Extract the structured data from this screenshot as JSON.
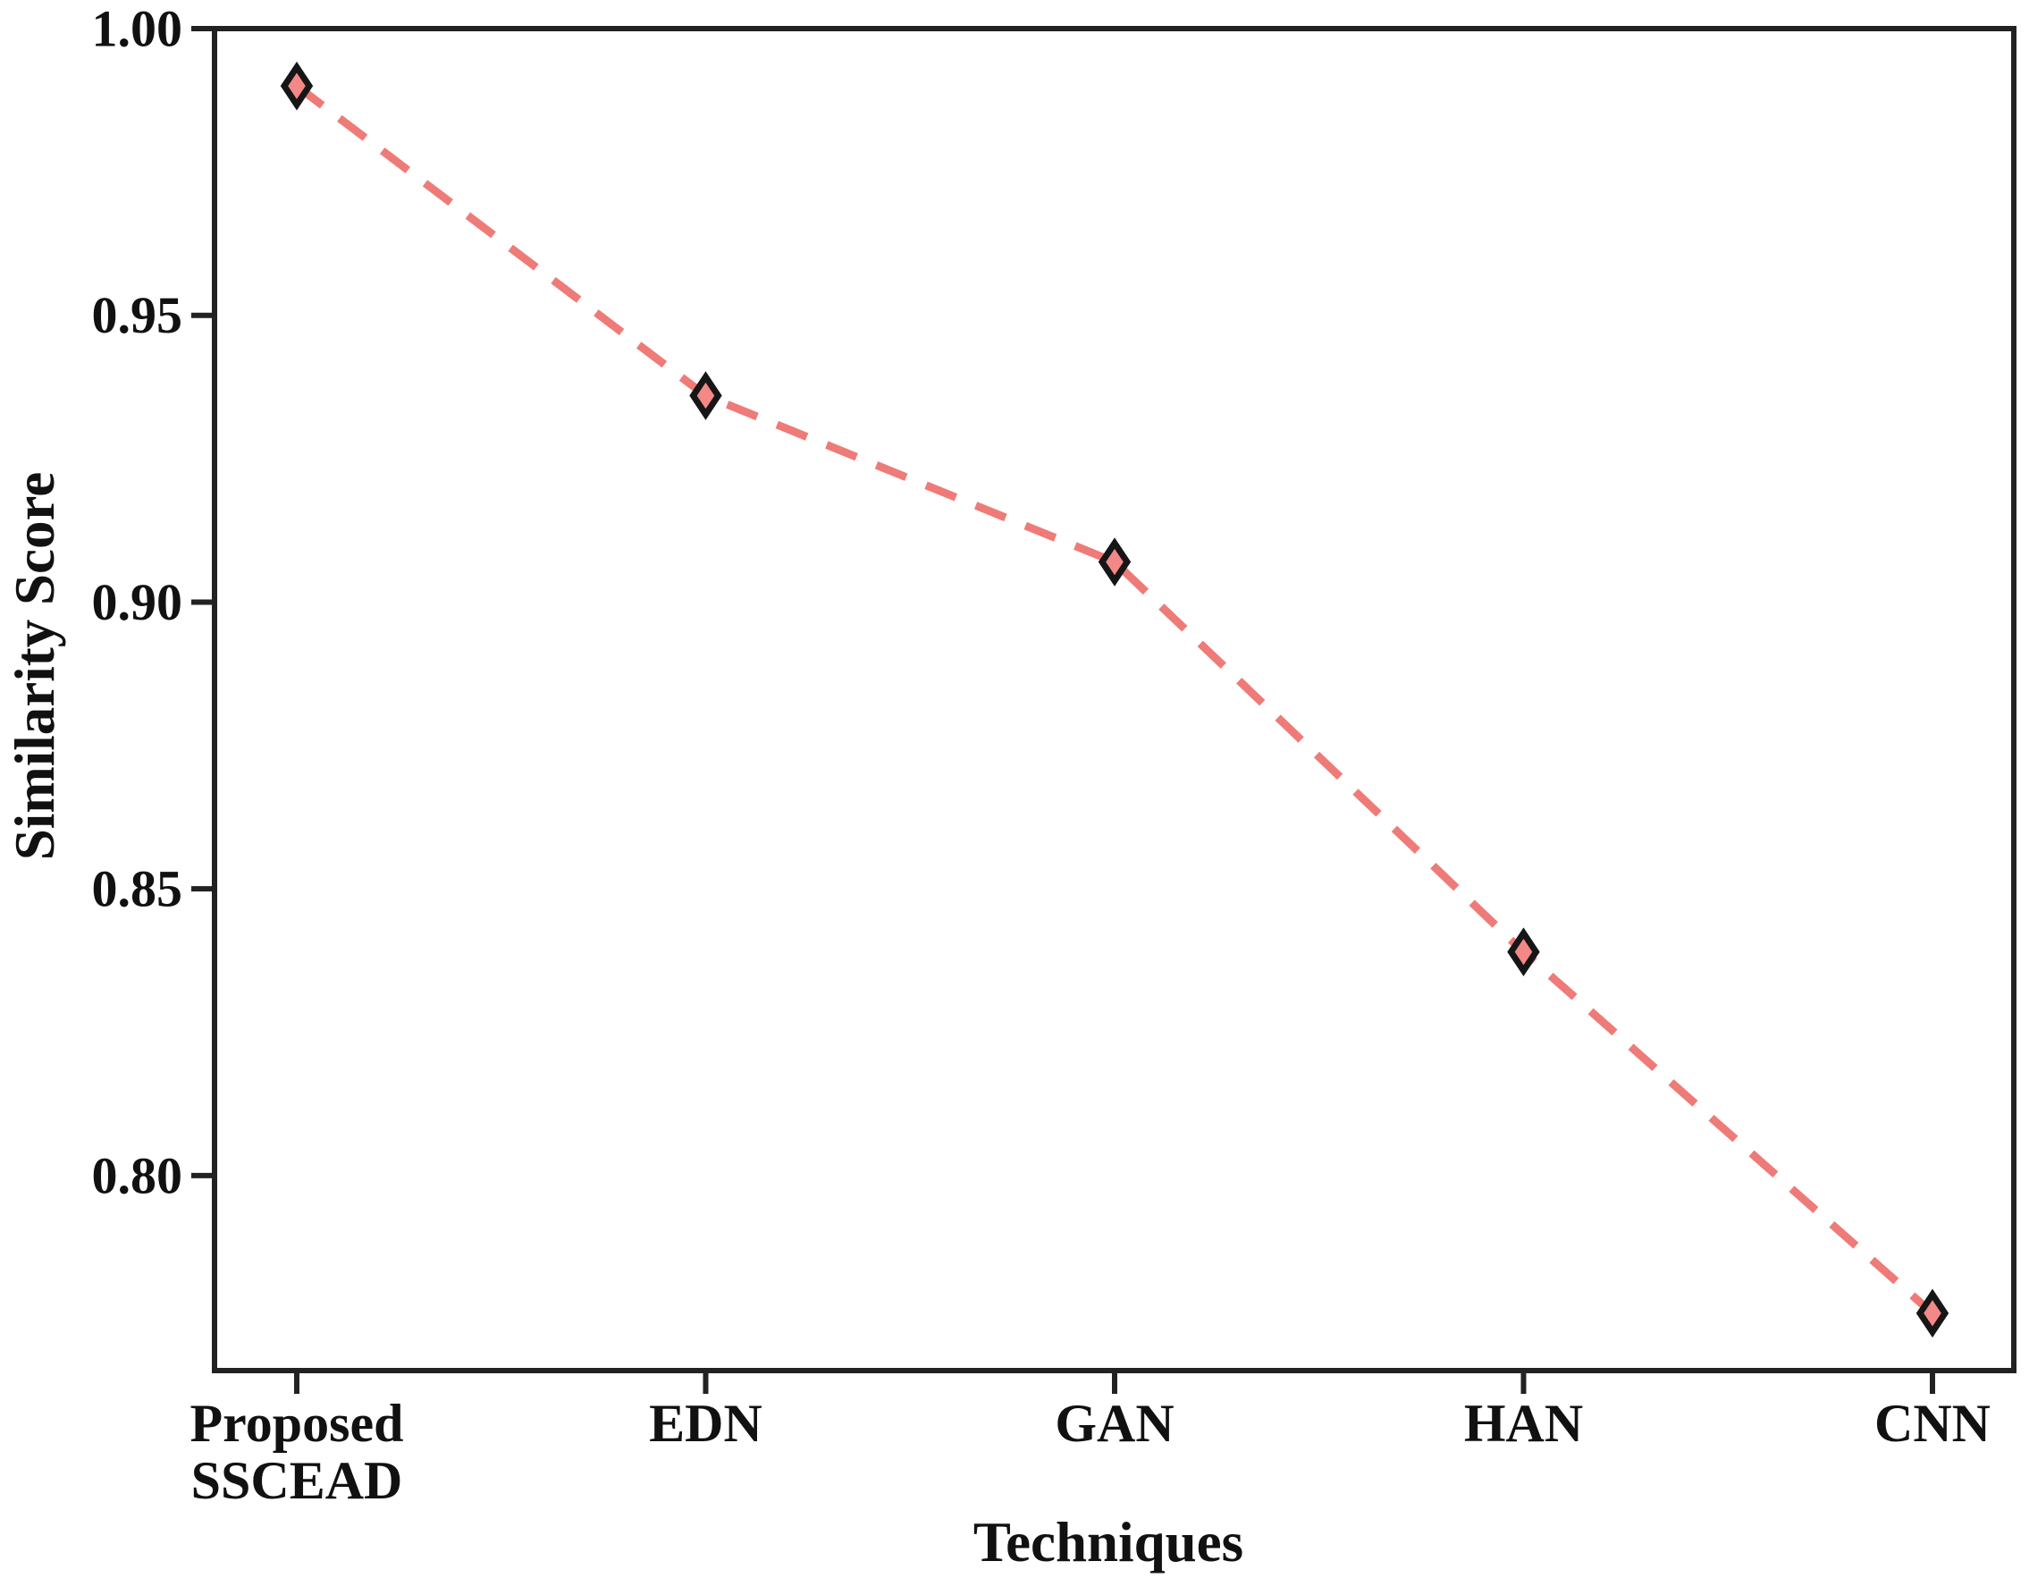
{
  "chart_data": {
    "type": "line",
    "title": "",
    "categories": [
      "Proposed SSCEAD",
      "EDN",
      "GAN",
      "HAN",
      "CNN"
    ],
    "category_label_lines": [
      [
        "Proposed",
        "SSCEAD"
      ],
      [
        "EDN"
      ],
      [
        "GAN"
      ],
      [
        "HAN"
      ],
      [
        "CNN"
      ]
    ],
    "series": [
      {
        "name": "Similarity Score",
        "values": [
          0.99,
          0.936,
          0.907,
          0.839,
          0.776
        ]
      }
    ],
    "xlabel": "Techniques",
    "ylabel": "Similarity Score",
    "ylim": [
      0.766,
      1.0
    ],
    "yticks": [
      0.8,
      0.85,
      0.9,
      0.95,
      1.0
    ],
    "ytick_labels": [
      "0.80",
      "0.85",
      "0.90",
      "0.95",
      "1.00"
    ],
    "grid": false,
    "legend": "none",
    "line_style": "dashed",
    "marker": "diamond",
    "colors": {
      "line": "#ee7b78",
      "marker_fill": "#f28987",
      "marker_edge": "#161616",
      "axis": "#222222",
      "text": "#111111"
    }
  }
}
